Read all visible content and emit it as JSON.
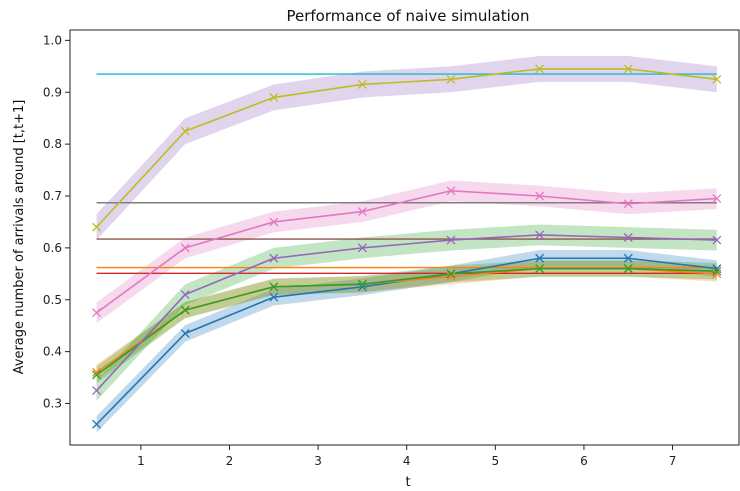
{
  "chart_data": {
    "type": "line",
    "title": "Performance of naive simulation",
    "xlabel": "t",
    "ylabel": "Average number of arrivals around [t,t+1]",
    "xlim": [
      0.2,
      7.75
    ],
    "ylim": [
      0.22,
      1.02
    ],
    "xticks": [
      1,
      2,
      3,
      4,
      5,
      6,
      7
    ],
    "yticks": [
      0.3,
      0.4,
      0.5,
      0.6,
      0.7,
      0.8,
      0.9,
      1.0
    ],
    "ytick_labels": [
      "0.3",
      "0.4",
      "0.5",
      "0.6",
      "0.7",
      "0.8",
      "0.9",
      "1.0"
    ],
    "grid": false,
    "x": [
      0.5,
      1.5,
      2.5,
      3.5,
      4.5,
      5.5,
      6.5,
      7.5
    ],
    "series": [
      {
        "color": "#1f77b4",
        "band": 0.016,
        "values": [
          0.26,
          0.435,
          0.505,
          0.525,
          0.55,
          0.58,
          0.58,
          0.56
        ]
      },
      {
        "color": "#ff7f0e",
        "band": 0.015,
        "values": [
          0.36,
          0.48,
          0.525,
          0.53,
          0.545,
          0.56,
          0.56,
          0.55
        ]
      },
      {
        "color": "#2ca02c",
        "band": 0.016,
        "values": [
          0.355,
          0.48,
          0.525,
          0.53,
          0.55,
          0.56,
          0.56,
          0.555
        ]
      },
      {
        "color": "#9467bd",
        "band": 0.02,
        "values": [
          0.325,
          0.51,
          0.58,
          0.6,
          0.615,
          0.625,
          0.62,
          0.615
        ]
      },
      {
        "color": "#e377c2",
        "band": 0.02,
        "values": [
          0.475,
          0.6,
          0.65,
          0.67,
          0.71,
          0.7,
          0.685,
          0.695
        ]
      },
      {
        "color": "#bcbd22",
        "band": 0.025,
        "values": [
          0.64,
          0.825,
          0.89,
          0.915,
          0.925,
          0.945,
          0.945,
          0.925
        ]
      }
    ],
    "band_colors": [
      "#1f77b4",
      "#ff7f0e",
      "#2ca02c",
      "#2ca02c",
      "#e377c2",
      "#9467bd"
    ],
    "reference_lines": [
      {
        "color": "#17becf",
        "y": 0.935
      },
      {
        "color": "#7f7f7f",
        "y": 0.687
      },
      {
        "color": "#8c564b",
        "y": 0.617
      },
      {
        "color": "#ff7f0e",
        "y": 0.562
      },
      {
        "color": "#d62728",
        "y": 0.551
      }
    ]
  }
}
